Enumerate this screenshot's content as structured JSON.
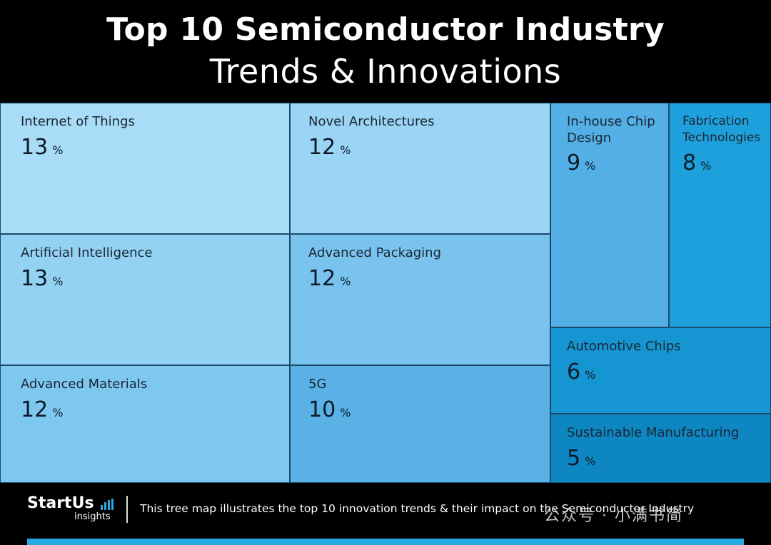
{
  "header": {
    "title": "Top 10 Semiconductor Industry",
    "subtitle": "Trends & Innovations"
  },
  "chart_data": {
    "type": "treemap",
    "title": "Top 10 Semiconductor Industry Trends & Innovations",
    "unit": "%",
    "items": [
      {
        "name": "Internet of Things",
        "value": 13,
        "color": "#a9dcf6"
      },
      {
        "name": "Artificial Intelligence",
        "value": 13,
        "color": "#93d2f3"
      },
      {
        "name": "Advanced Materials",
        "value": 12,
        "color": "#7ec8f0"
      },
      {
        "name": "Novel Architectures",
        "value": 12,
        "color": "#9bd5f5"
      },
      {
        "name": "Advanced Packaging",
        "value": 12,
        "color": "#79c3ee"
      },
      {
        "name": "5G",
        "value": 10,
        "color": "#59b1e6"
      },
      {
        "name": "In-house Chip Design",
        "value": 9,
        "color": "#53afe5"
      },
      {
        "name": "Fabrication Technologies",
        "value": 8,
        "color": "#1ea0dc"
      },
      {
        "name": "Automotive Chips",
        "value": 6,
        "color": "#1596d3"
      },
      {
        "name": "Sustainable Manufacturing",
        "value": 5,
        "color": "#0e86c1"
      }
    ]
  },
  "footer": {
    "brand": "StartUs",
    "brand_sub": "insights",
    "description": "This tree map illustrates the top 10 innovation trends & their impact on the Semiconductor Industry",
    "watermark": "公众号 · 小满书简"
  }
}
